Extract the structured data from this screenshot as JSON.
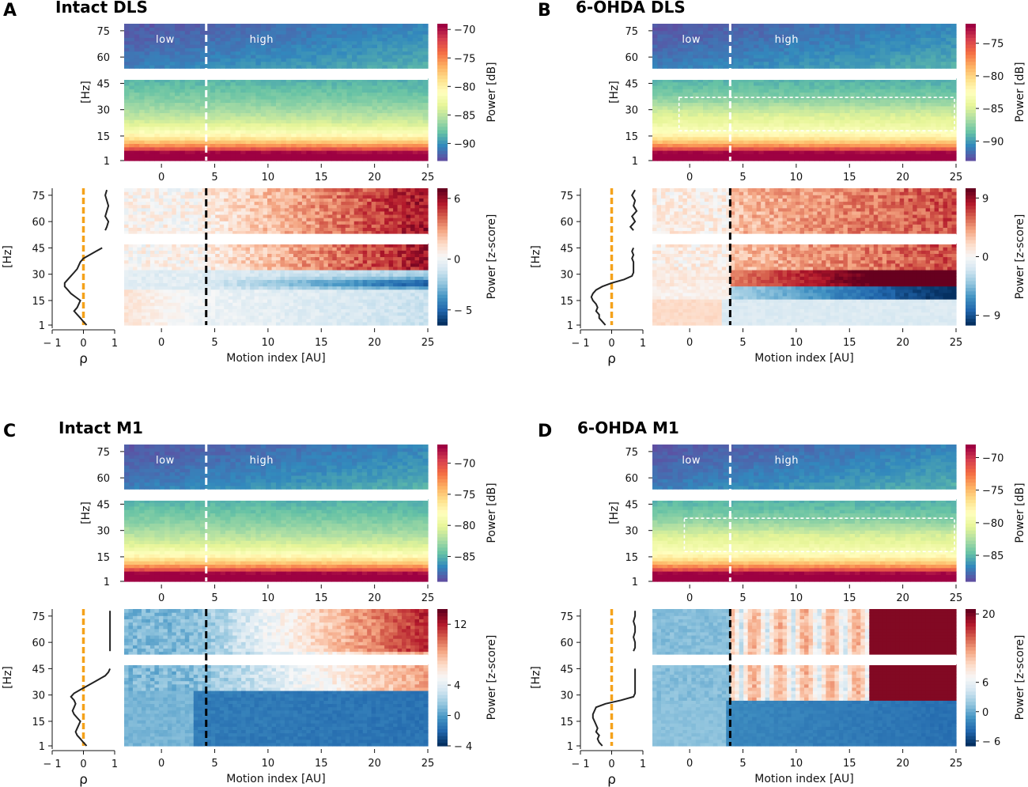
{
  "figure": {
    "colors": {
      "divider_dashed_light": "#ffffff",
      "divider_dashed_dark": "#000000",
      "rho_zero_line": "#f5a21b",
      "rho_curve": "#222222"
    }
  },
  "chart_data": [
    {
      "panel": "A",
      "title": "Intact DLS",
      "type": "heatmap",
      "top": {
        "ylabel": "[Hz]",
        "yticks": [
          1,
          15,
          30,
          45,
          60,
          75
        ],
        "xticks": [
          0,
          5,
          10,
          15,
          20,
          25
        ],
        "xlim": [
          -3.5,
          25
        ],
        "gap_hz": [
          47,
          53
        ],
        "divider_x": 4.2,
        "region_labels": [
          "low",
          "high"
        ],
        "colorbar_label": "Power [dB]",
        "colorbar_ticks": [
          -70,
          -75,
          -80,
          -85,
          -90
        ],
        "colorbar_range": [
          -93,
          -69
        ],
        "highlight_box": null
      },
      "bottom": {
        "ylabel": "[Hz]",
        "xlabel": "Motion index [AU]",
        "xticks": [
          0,
          5,
          10,
          15,
          20,
          25
        ],
        "colorbar_label": "Power [z-score]",
        "colorbar_ticks": [
          6,
          0,
          -5
        ],
        "colorbar_range": [
          -6.5,
          7
        ],
        "pattern": "intact_dls",
        "rho_xticks": [
          -1,
          0,
          1
        ],
        "rho_label": "ρ",
        "rho_curve": {
          "freq": [
            1,
            3,
            5,
            7,
            9,
            11,
            13,
            15,
            17,
            19,
            21,
            23,
            25,
            27,
            29,
            31,
            33,
            35,
            37,
            39,
            41,
            43,
            45,
            47,
            53,
            55,
            57,
            60,
            63,
            66,
            69,
            72,
            75,
            78
          ],
          "rho": [
            0.1,
            0.0,
            -0.1,
            -0.2,
            -0.3,
            -0.2,
            -0.15,
            -0.1,
            -0.25,
            -0.4,
            -0.5,
            -0.6,
            -0.6,
            -0.5,
            -0.4,
            -0.3,
            -0.2,
            -0.15,
            -0.1,
            0.0,
            0.2,
            0.4,
            0.6,
            0.75,
            0.65,
            0.7,
            0.75,
            0.8,
            0.7,
            0.75,
            0.8,
            0.75,
            0.7,
            0.75
          ]
        }
      }
    },
    {
      "panel": "B",
      "title": "6-OHDA DLS",
      "type": "heatmap",
      "top": {
        "ylabel": "[Hz]",
        "yticks": [
          1,
          15,
          30,
          45,
          60,
          75
        ],
        "xticks": [
          0,
          5,
          10,
          15,
          20,
          25
        ],
        "xlim": [
          -3.5,
          25
        ],
        "gap_hz": [
          47,
          53
        ],
        "divider_x": 3.8,
        "region_labels": [
          "low",
          "high"
        ],
        "colorbar_label": "Power [dB]",
        "colorbar_ticks": [
          -75,
          -80,
          -85,
          -90
        ],
        "colorbar_range": [
          -93,
          -72
        ],
        "highlight_box": {
          "x": [
            -1,
            25
          ],
          "hz": [
            18,
            37
          ]
        }
      },
      "bottom": {
        "ylabel": "[Hz]",
        "xlabel": "Motion index [AU]",
        "xticks": [
          0,
          5,
          10,
          15,
          20,
          25
        ],
        "colorbar_label": "Power [z-score]",
        "colorbar_ticks": [
          9,
          0,
          -9
        ],
        "colorbar_range": [
          -10.5,
          10.5
        ],
        "pattern": "ohda_dls",
        "rho_xticks": [
          -1,
          0,
          1
        ],
        "rho_label": "ρ",
        "rho_curve": {
          "freq": [
            1,
            3,
            5,
            7,
            9,
            11,
            13,
            15,
            17,
            19,
            21,
            23,
            25,
            27,
            29,
            31,
            33,
            35,
            37,
            39,
            41,
            43,
            45,
            47,
            53,
            55,
            57,
            60,
            63,
            66,
            69,
            72,
            75,
            78
          ],
          "rho": [
            -0.2,
            -0.3,
            -0.4,
            -0.4,
            -0.5,
            -0.45,
            -0.5,
            -0.6,
            -0.65,
            -0.6,
            -0.5,
            -0.3,
            0.0,
            0.4,
            0.65,
            0.7,
            0.7,
            0.7,
            0.7,
            0.65,
            0.7,
            0.65,
            0.7,
            0.65,
            0.6,
            0.7,
            0.6,
            0.75,
            0.65,
            0.8,
            0.7,
            0.75,
            0.65,
            0.75
          ]
        }
      }
    },
    {
      "panel": "C",
      "title": "Intact M1",
      "type": "heatmap",
      "top": {
        "ylabel": "[Hz]",
        "yticks": [
          1,
          15,
          30,
          45,
          60,
          75
        ],
        "xticks": [
          0,
          5,
          10,
          15,
          20,
          25
        ],
        "xlim": [
          -3.5,
          25
        ],
        "gap_hz": [
          47,
          53
        ],
        "divider_x": 4.2,
        "region_labels": [
          "low",
          "high"
        ],
        "colorbar_label": "Power [dB]",
        "colorbar_ticks": [
          -70,
          -75,
          -80,
          -85
        ],
        "colorbar_range": [
          -89,
          -67
        ],
        "highlight_box": null
      },
      "bottom": {
        "ylabel": "[Hz]",
        "xlabel": "Motion index [AU]",
        "xticks": [
          0,
          5,
          10,
          15,
          20,
          25
        ],
        "colorbar_label": "Power [z-score]",
        "colorbar_ticks": [
          12,
          4,
          0,
          -4
        ],
        "colorbar_range": [
          -4,
          14
        ],
        "pattern": "intact_m1",
        "rho_xticks": [
          -1,
          0,
          1
        ],
        "rho_label": "ρ",
        "rho_curve": {
          "freq": [
            1,
            3,
            5,
            7,
            9,
            11,
            13,
            15,
            17,
            19,
            21,
            23,
            25,
            27,
            29,
            31,
            33,
            35,
            37,
            39,
            41,
            43,
            45,
            47,
            53,
            55,
            57,
            60,
            63,
            66,
            69,
            72,
            75,
            78
          ],
          "rho": [
            0.1,
            0.0,
            -0.1,
            -0.2,
            -0.25,
            -0.2,
            -0.15,
            -0.1,
            -0.2,
            -0.3,
            -0.35,
            -0.3,
            -0.25,
            -0.3,
            -0.4,
            -0.3,
            -0.1,
            0.1,
            0.3,
            0.5,
            0.7,
            0.8,
            0.85,
            0.85,
            0.85,
            0.85,
            0.85,
            0.85,
            0.85,
            0.85,
            0.85,
            0.85,
            0.85,
            0.85
          ]
        }
      }
    },
    {
      "panel": "D",
      "title": "6-OHDA M1",
      "type": "heatmap",
      "top": {
        "ylabel": "[Hz]",
        "yticks": [
          1,
          15,
          30,
          45,
          60,
          75
        ],
        "xticks": [
          0,
          5,
          10,
          15,
          20,
          25
        ],
        "xlim": [
          -3.5,
          25
        ],
        "gap_hz": [
          47,
          53
        ],
        "divider_x": 3.8,
        "region_labels": [
          "low",
          "high"
        ],
        "colorbar_label": "Power [dB]",
        "colorbar_ticks": [
          -70,
          -75,
          -80,
          -85
        ],
        "colorbar_range": [
          -89,
          -68
        ],
        "highlight_box": {
          "x": [
            -0.5,
            25
          ],
          "hz": [
            18,
            37
          ]
        }
      },
      "bottom": {
        "ylabel": "[Hz]",
        "xlabel": "Motion index [AU]",
        "xticks": [
          0,
          5,
          10,
          15,
          20,
          25
        ],
        "colorbar_label": "Power [z-score]",
        "colorbar_ticks": [
          20,
          6,
          0,
          -6
        ],
        "colorbar_range": [
          -7,
          21
        ],
        "pattern": "ohda_m1",
        "rho_xticks": [
          -1,
          0,
          1
        ],
        "rho_label": "ρ",
        "rho_curve": {
          "freq": [
            1,
            3,
            5,
            7,
            9,
            11,
            13,
            15,
            17,
            19,
            21,
            23,
            25,
            27,
            29,
            31,
            33,
            35,
            37,
            39,
            41,
            43,
            45,
            47,
            53,
            55,
            57,
            60,
            63,
            66,
            69,
            72,
            75,
            78
          ],
          "rho": [
            -0.3,
            -0.4,
            -0.45,
            -0.4,
            -0.5,
            -0.45,
            -0.5,
            -0.55,
            -0.6,
            -0.6,
            -0.55,
            -0.5,
            -0.2,
            0.3,
            0.7,
            0.75,
            0.75,
            0.75,
            0.75,
            0.75,
            0.75,
            0.75,
            0.75,
            0.75,
            0.75,
            0.7,
            0.75,
            0.75,
            0.7,
            0.75,
            0.75,
            0.7,
            0.75,
            0.75
          ]
        }
      }
    }
  ]
}
